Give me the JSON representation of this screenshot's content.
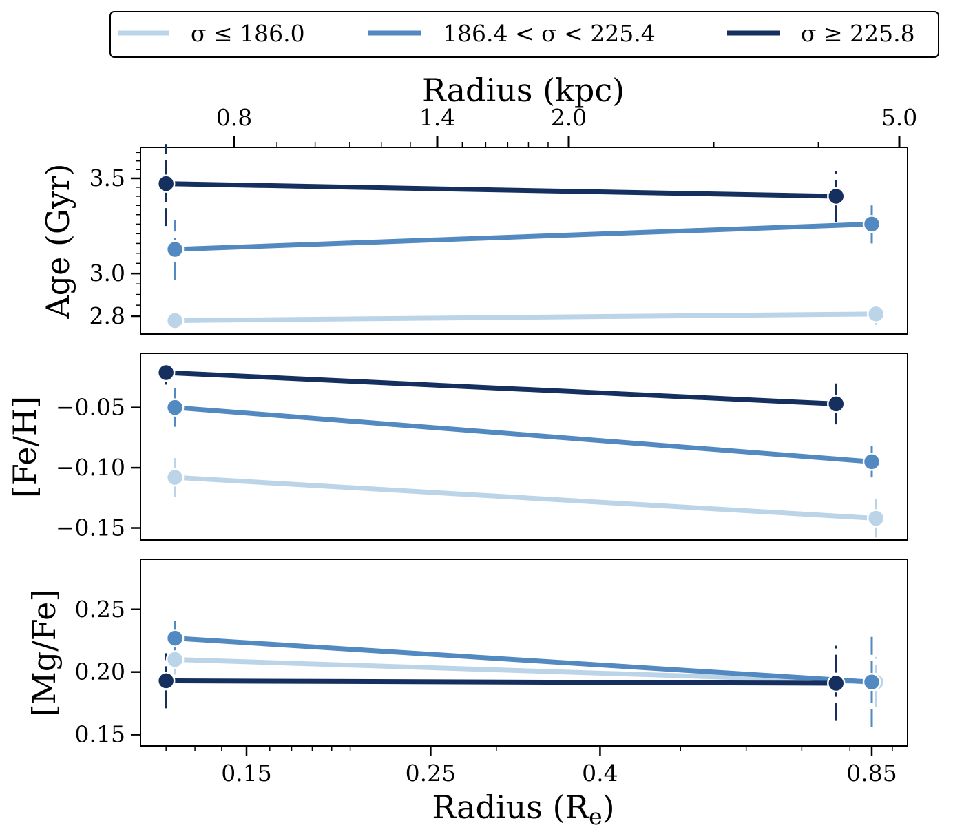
{
  "chart_data": {
    "type": "line",
    "colors": {
      "low": "#bcd4e8",
      "mid": "#5289c0",
      "high": "#15305f"
    },
    "legend": {
      "placement": "top",
      "entries": [
        "σ ≤  186.0",
        "186.4 < σ < 225.4",
        "σ ≥  225.8"
      ]
    },
    "top_axis": {
      "label": "Radius (kpc)",
      "ticks": [
        "0.8",
        "1.4",
        "2.0",
        "5.0"
      ]
    },
    "x_axis": {
      "label_main": "Radius (R",
      "label_sub": "e",
      "label_end": ")",
      "scale": "log",
      "ticks": [
        "0.15",
        "0.25",
        "0.4",
        "0.85"
      ]
    },
    "panels": [
      {
        "ylabel": "Age (Gyr)",
        "scale": "log",
        "ylim": [
          2.72,
          3.68
        ],
        "ticks": [
          "2.8",
          "3.0",
          "3.5"
        ],
        "series": [
          {
            "name": "σ ≤  186.0",
            "x": [
              0.123,
              0.86
            ],
            "y": [
              2.78,
              2.81
            ],
            "err": [
              0.03,
              0.05
            ]
          },
          {
            "name": "186.4 < σ < 225.4",
            "x": [
              0.123,
              0.85
            ],
            "y": [
              3.12,
              3.25
            ],
            "err": [
              0.15,
              0.1
            ]
          },
          {
            "name": "σ ≥  225.8",
            "x": [
              0.12,
              0.77
            ],
            "y": [
              3.47,
              3.4
            ],
            "err": [
              0.23,
              0.14
            ]
          }
        ]
      },
      {
        "ylabel": "[Fe/H]",
        "scale": "linear",
        "ylim": [
          -0.16,
          -0.005
        ],
        "ticks": [
          "−0.05",
          "−0.10",
          "−0.15"
        ],
        "series": [
          {
            "name": "σ ≤  186.0",
            "x": [
              0.123,
              0.86
            ],
            "y": [
              -0.108,
              -0.142
            ],
            "err": [
              0.016,
              0.016
            ]
          },
          {
            "name": "186.4 < σ < 225.4",
            "x": [
              0.123,
              0.85
            ],
            "y": [
              -0.05,
              -0.095
            ],
            "err": [
              0.016,
              0.013
            ]
          },
          {
            "name": "σ ≥  225.8",
            "x": [
              0.12,
              0.77
            ],
            "y": [
              -0.021,
              -0.047
            ],
            "err": [
              0.01,
              0.017
            ]
          }
        ]
      },
      {
        "ylabel": "[Mg/Fe]",
        "scale": "linear",
        "ylim": [
          0.141,
          0.29
        ],
        "ticks": [
          "0.25",
          "0.20",
          "0.15"
        ],
        "series": [
          {
            "name": "σ ≤  186.0",
            "x": [
              0.123,
              0.86
            ],
            "y": [
              0.21,
              0.192
            ],
            "err": [
              0.012,
              0.02
            ]
          },
          {
            "name": "186.4 < σ < 225.4",
            "x": [
              0.123,
              0.85
            ],
            "y": [
              0.227,
              0.192
            ],
            "err": [
              0.014,
              0.036
            ]
          },
          {
            "name": "σ ≥  225.8",
            "x": [
              0.12,
              0.77
            ],
            "y": [
              0.193,
              0.191
            ],
            "err": [
              0.022,
              0.03
            ]
          }
        ]
      }
    ]
  }
}
